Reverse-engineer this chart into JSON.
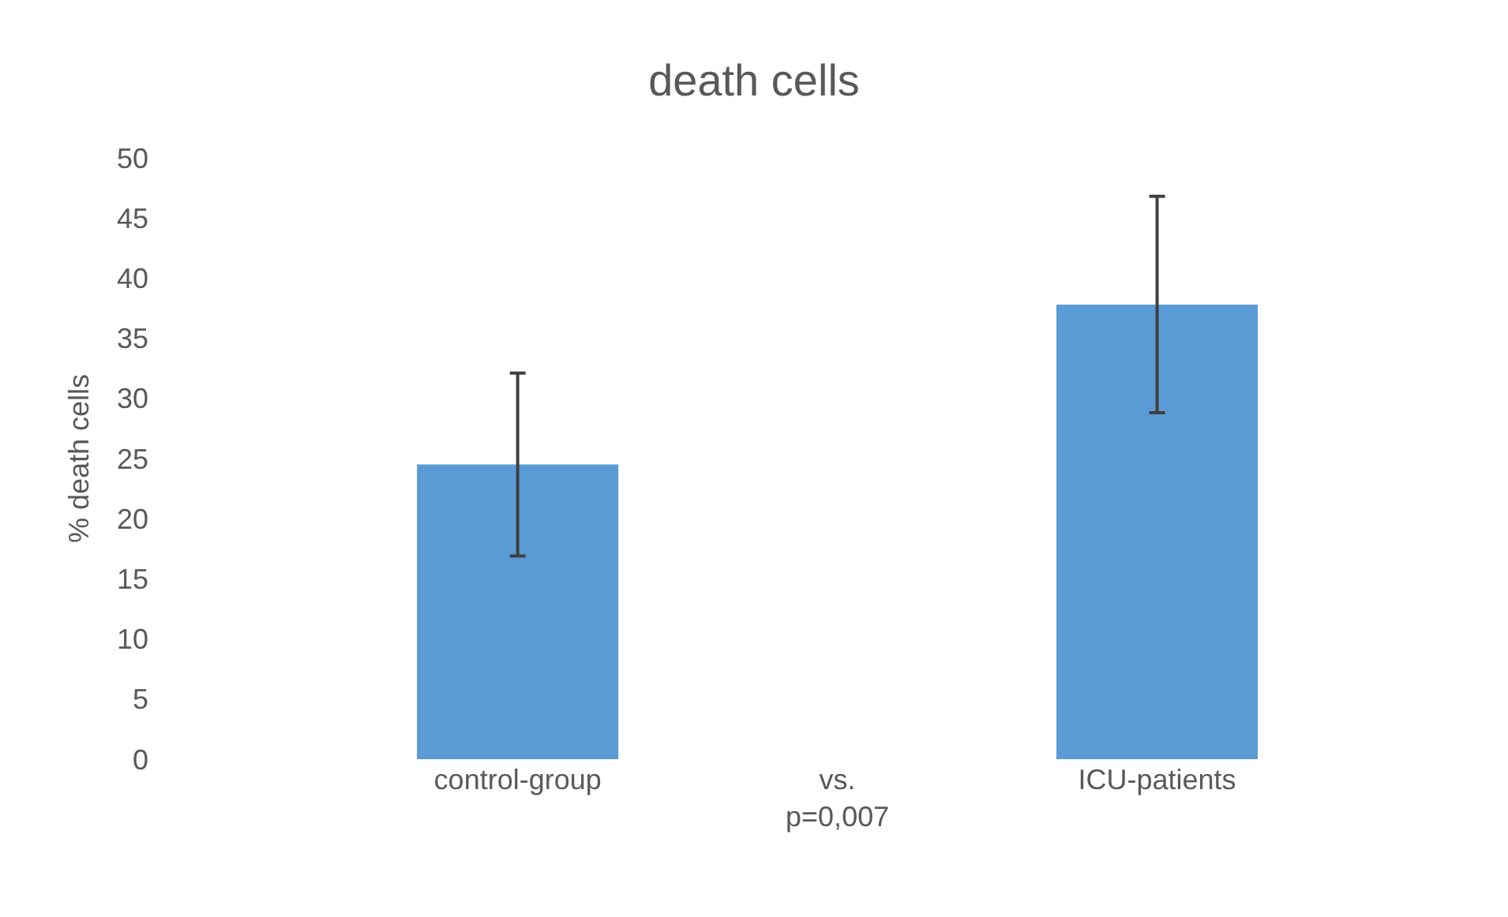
{
  "chart_data": {
    "type": "bar",
    "title": "death cells",
    "ylabel": "% death cells",
    "categories": [
      "control-group",
      "vs. p=0,007",
      "ICU-patients"
    ],
    "values": [
      24.5,
      null,
      37.8
    ],
    "errors": [
      7.6,
      null,
      9
    ],
    "color": "#5b9bd5",
    "ylim": [
      0,
      50
    ],
    "yticks": [
      0,
      5,
      10,
      15,
      20,
      25,
      30,
      35,
      40,
      45,
      50
    ]
  }
}
